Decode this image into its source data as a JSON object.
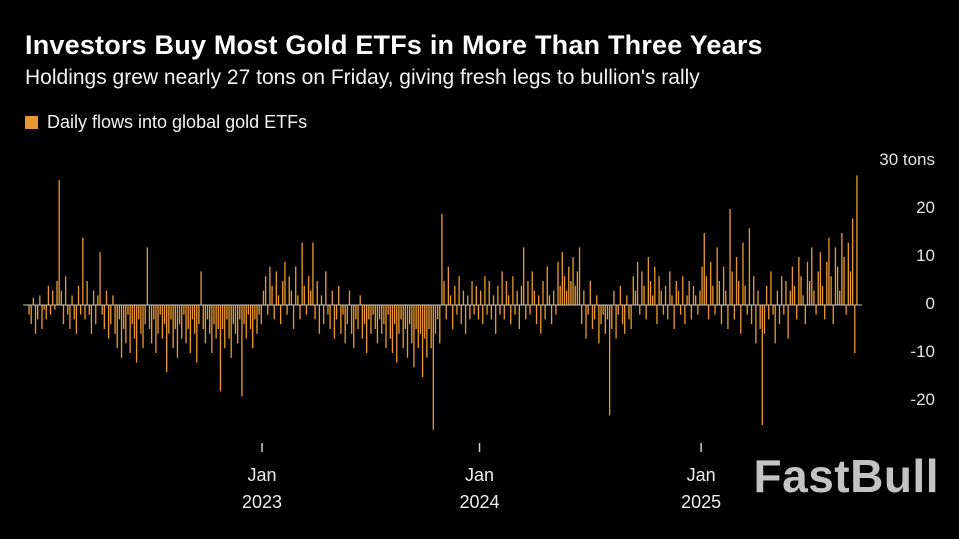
{
  "header": {
    "title": "Investors Buy Most Gold ETFs in More Than Three Years",
    "subtitle": "Holdings grew nearly 27 tons on Friday, giving fresh legs to bullion's rally"
  },
  "legend": {
    "label": "Daily flows into global gold ETFs"
  },
  "watermark": {
    "text": "FastBull"
  },
  "colors": {
    "background": "#000000",
    "bar": "#E8962F",
    "zero_line": "#C9C9C9",
    "axis_text": "#E3E3E3",
    "title_text": "#FFFFFF"
  },
  "chart_data": {
    "type": "bar",
    "title": "Daily flows into global gold ETFs",
    "ylabel": "tons",
    "ylim": [
      -28,
      30
    ],
    "grid": false,
    "legend_position": "top-left",
    "x_unit": "trading days, mid-2022 through Sep 2025",
    "y_ticks": [
      {
        "value": 30,
        "label": "30 tons"
      },
      {
        "value": 20,
        "label": "20"
      },
      {
        "value": 10,
        "label": "10"
      },
      {
        "value": 0,
        "label": "0"
      },
      {
        "value": -10,
        "label": "-10"
      },
      {
        "value": -20,
        "label": "-20"
      }
    ],
    "x_ticks": [
      {
        "frac": 0.282,
        "line1": "Jan",
        "line2": "2023"
      },
      {
        "frac": 0.544,
        "line1": "Jan",
        "line2": "2024"
      },
      {
        "frac": 0.811,
        "line1": "Jan",
        "line2": "2025"
      }
    ],
    "series_name": "Daily flows into global gold ETFs",
    "values": [
      -2,
      -4,
      1.5,
      -6,
      -3,
      2,
      -5,
      -1,
      -3,
      4,
      -2,
      3,
      -1,
      5,
      26,
      3,
      -4,
      6,
      -2,
      -5,
      2,
      -3,
      -6,
      4,
      -2,
      14,
      -3,
      5,
      -2,
      -6,
      3,
      -4,
      2,
      11,
      -2,
      -5,
      3,
      -7,
      -4,
      2,
      -6,
      -9,
      -3,
      -11,
      -5,
      -8,
      -2,
      -10,
      -4,
      -7,
      -12,
      -3,
      -6,
      -9,
      -4,
      12,
      -5,
      -8,
      -3,
      -10,
      -6,
      -2,
      -7,
      -4,
      -14,
      -6,
      -3,
      -9,
      -5,
      -11,
      -4,
      -7,
      -2,
      -8,
      -5,
      -10,
      -3,
      -6,
      -12,
      -4,
      7,
      -5,
      -8,
      -3,
      -6,
      -10,
      -4,
      -7,
      -5,
      -18,
      -5,
      -9,
      -3,
      -7,
      -11,
      -4,
      -6,
      -8,
      -3,
      -19,
      -4,
      -7,
      -2,
      -5,
      -9,
      -3,
      -6,
      -2,
      -4,
      3,
      6,
      -2,
      8,
      4,
      -3,
      7,
      2,
      -4,
      5,
      9,
      -2,
      6,
      3,
      -5,
      8,
      2,
      -3,
      13,
      4,
      -2,
      6,
      3,
      13,
      -3,
      5,
      -6,
      2,
      -4,
      7,
      -2,
      -5,
      3,
      -7,
      -3,
      4,
      -6,
      -2,
      -8,
      -4,
      3,
      -6,
      -9,
      -3,
      -5,
      2,
      -7,
      -4,
      -10,
      -3,
      -6,
      -2,
      -5,
      -8,
      -3,
      -6,
      -4,
      -9,
      -2,
      -7,
      -10,
      -4,
      -12,
      -6,
      -3,
      -9,
      -5,
      -11,
      -4,
      -8,
      -13,
      -5,
      -9,
      -6,
      -15,
      -7,
      -11,
      -5,
      -9,
      -26,
      -6,
      -3,
      -8,
      19,
      5,
      -3,
      8,
      2,
      -5,
      4,
      -2,
      6,
      -4,
      3,
      -6,
      2,
      -3,
      5,
      -2,
      4,
      -3,
      3,
      -4,
      6,
      -2,
      5,
      -3,
      2,
      -6,
      4,
      -2,
      7,
      -3,
      5,
      2,
      -4,
      6,
      -2,
      3,
      -5,
      4,
      12,
      -3,
      5,
      -2,
      7,
      3,
      -4,
      2,
      -6,
      5,
      -3,
      8,
      2,
      -4,
      3,
      -2,
      9,
      4,
      11,
      6,
      3,
      8,
      5,
      10,
      4,
      7,
      12,
      -4,
      3,
      -7,
      -2,
      5,
      -5,
      -3,
      2,
      -8,
      -4,
      -2,
      -6,
      -3,
      -23,
      -5,
      3,
      -7,
      -2,
      4,
      -4,
      -6,
      2,
      -3,
      -5,
      6,
      3,
      9,
      -2,
      7,
      4,
      -3,
      10,
      5,
      2,
      8,
      -4,
      6,
      3,
      -2,
      4,
      -3,
      7,
      2,
      -5,
      5,
      3,
      -2,
      6,
      -4,
      2,
      5,
      -3,
      4,
      2,
      -2,
      3,
      8,
      15,
      6,
      -3,
      9,
      4,
      -2,
      12,
      5,
      -4,
      8,
      3,
      -5,
      20,
      7,
      -3,
      10,
      5,
      -6,
      13,
      4,
      -2,
      16,
      -4,
      6,
      -8,
      3,
      -5,
      -25,
      -6,
      4,
      -3,
      7,
      -2,
      -8,
      3,
      -4,
      6,
      -2,
      5,
      -7,
      3,
      8,
      4,
      -3,
      10,
      6,
      2,
      -4,
      9,
      5,
      12,
      3,
      -2,
      7,
      11,
      4,
      -3,
      9,
      14,
      6,
      -4,
      12,
      8,
      3,
      15,
      10,
      -2,
      13,
      7,
      18,
      -10,
      27
    ]
  }
}
